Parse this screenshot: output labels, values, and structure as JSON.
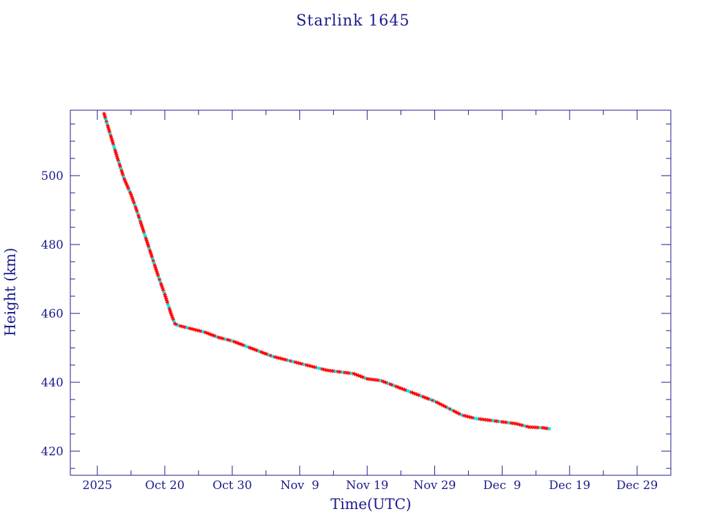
{
  "chart_data": {
    "type": "scatter",
    "title": "Starlink 1645",
    "xlabel": "Time(UTC)",
    "ylabel": "Height (km)",
    "x_unit": "date",
    "xlim": [
      "2025-10-06",
      "2026-01-03"
    ],
    "ylim": [
      413,
      519
    ],
    "x_ticks": [
      {
        "date": "2025-10-10",
        "label": "2025"
      },
      {
        "date": "2025-10-20",
        "label": "Oct 20"
      },
      {
        "date": "2025-10-30",
        "label": "Oct 30"
      },
      {
        "date": "2025-11-09",
        "label": "Nov  9"
      },
      {
        "date": "2025-11-19",
        "label": "Nov 19"
      },
      {
        "date": "2025-11-29",
        "label": "Nov 29"
      },
      {
        "date": "2025-12-09",
        "label": "Dec  9"
      },
      {
        "date": "2025-12-19",
        "label": "Dec 19"
      },
      {
        "date": "2025-12-29",
        "label": "Dec 29"
      }
    ],
    "y_ticks": [
      420,
      440,
      460,
      480,
      500
    ],
    "grid": false,
    "legend": "none",
    "colors": {
      "axis": "#1a1a8c",
      "line": "#000000",
      "marker_primary": "#ff0000",
      "marker_secondary": "#00e5e5"
    },
    "series": [
      {
        "points": [
          [
            "2025-10-11",
            518.0
          ],
          [
            "2025-10-12",
            511.5
          ],
          [
            "2025-10-13",
            505.0
          ],
          [
            "2025-10-14",
            499.0
          ],
          [
            "2025-10-15",
            494.5
          ],
          [
            "2025-10-16",
            489.0
          ],
          [
            "2025-10-17",
            483.0
          ],
          [
            "2025-10-18",
            477.0
          ],
          [
            "2025-10-19",
            471.0
          ],
          [
            "2025-10-20",
            465.5
          ],
          [
            "2025-10-21",
            459.5
          ],
          [
            "2025-10-21T12:00",
            457.0
          ],
          [
            "2025-10-22",
            456.5
          ],
          [
            "2025-10-24",
            455.5
          ],
          [
            "2025-10-26",
            454.5
          ],
          [
            "2025-10-28",
            453.0
          ],
          [
            "2025-10-30",
            452.0
          ],
          [
            "2025-11-01",
            450.5
          ],
          [
            "2025-11-03",
            449.0
          ],
          [
            "2025-11-05",
            447.5
          ],
          [
            "2025-11-07",
            446.5
          ],
          [
            "2025-11-09",
            445.5
          ],
          [
            "2025-11-11",
            444.5
          ],
          [
            "2025-11-13",
            443.5
          ],
          [
            "2025-11-15",
            443.0
          ],
          [
            "2025-11-17",
            442.5
          ],
          [
            "2025-11-19",
            441.0
          ],
          [
            "2025-11-21",
            440.5
          ],
          [
            "2025-11-23",
            439.0
          ],
          [
            "2025-11-25",
            437.5
          ],
          [
            "2025-11-27",
            436.0
          ],
          [
            "2025-11-29",
            434.5
          ],
          [
            "2025-12-01",
            432.5
          ],
          [
            "2025-12-03",
            430.5
          ],
          [
            "2025-12-05",
            429.5
          ],
          [
            "2025-12-07",
            429.0
          ],
          [
            "2025-12-09",
            428.5
          ],
          [
            "2025-12-11",
            428.0
          ],
          [
            "2025-12-13",
            427.0
          ],
          [
            "2025-12-15",
            426.8
          ],
          [
            "2025-12-16",
            426.5
          ]
        ]
      }
    ]
  }
}
